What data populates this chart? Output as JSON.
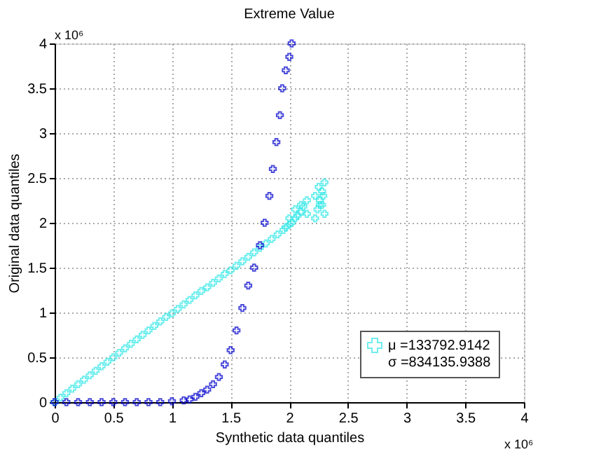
{
  "chart_data": {
    "type": "scatter",
    "title": "Extreme Value",
    "xlabel": "Synthetic data quantiles",
    "ylabel": "Original data quantiles",
    "xlim": [
      0,
      4
    ],
    "ylim": [
      0,
      4
    ],
    "xticks": [
      0,
      0.5,
      1,
      1.5,
      2,
      2.5,
      3,
      3.5,
      4
    ],
    "yticks": [
      0,
      0.5,
      1,
      1.5,
      2,
      2.5,
      3,
      3.5,
      4
    ],
    "grid": true,
    "marker": "cross",
    "legend": "bottom right",
    "annotations": [
      "x 10⁶",
      "x 10⁶"
    ],
    "series": [
      {
        "name": "μ =133792.9142\nσ =834135.9388",
        "color": "#33e8e8",
        "x": [
          0,
          0.05,
          0.1,
          0.15,
          0.2,
          0.25,
          0.3,
          0.35,
          0.4,
          0.45,
          0.5,
          0.55,
          0.6,
          0.65,
          0.7,
          0.75,
          0.8,
          0.85,
          0.9,
          0.95,
          1,
          1.05,
          1.1,
          1.15,
          1.2,
          1.25,
          1.3,
          1.35,
          1.4,
          1.45,
          1.5,
          1.55,
          1.6,
          1.65,
          1.7,
          1.75,
          1.8,
          1.85,
          1.9,
          1.95,
          1.97,
          2.0,
          2.02,
          2.05,
          2.07,
          2.1,
          2.12,
          2.15,
          2.0,
          2.05,
          2.1,
          2.15,
          2.22,
          2.24,
          2.26,
          2.28,
          2.3,
          2.22,
          2.25,
          2.28,
          2.3,
          2.26,
          2.29
        ],
        "values": [
          0,
          0.05,
          0.1,
          0.15,
          0.2,
          0.25,
          0.3,
          0.35,
          0.4,
          0.45,
          0.5,
          0.55,
          0.6,
          0.65,
          0.7,
          0.75,
          0.8,
          0.85,
          0.9,
          0.95,
          0.99,
          1.04,
          1.09,
          1.14,
          1.19,
          1.24,
          1.28,
          1.33,
          1.38,
          1.43,
          1.47,
          1.52,
          1.57,
          1.62,
          1.67,
          1.72,
          1.77,
          1.82,
          1.87,
          1.92,
          1.95,
          1.98,
          2.0,
          2.05,
          2.08,
          2.12,
          2.18,
          2.25,
          2.05,
          2.15,
          2.2,
          2.1,
          2.05,
          2.15,
          2.25,
          2.2,
          2.1,
          2.3,
          2.4,
          2.35,
          2.45,
          2.2,
          2.3
        ]
      },
      {
        "color": "#0000cc",
        "x": [
          0,
          0.1,
          0.2,
          0.3,
          0.4,
          0.5,
          0.6,
          0.7,
          0.8,
          0.9,
          1.0,
          1.1,
          1.15,
          1.2,
          1.25,
          1.3,
          1.35,
          1.4,
          1.45,
          1.5,
          1.55,
          1.6,
          1.65,
          1.7,
          1.75,
          1.79,
          1.83,
          1.86,
          1.89,
          1.92,
          1.94,
          1.97,
          2.0,
          2.02
        ],
        "values": [
          0,
          0,
          0,
          0,
          0,
          0,
          0,
          0,
          0,
          0,
          0.01,
          0.02,
          0.03,
          0.06,
          0.1,
          0.14,
          0.2,
          0.28,
          0.42,
          0.58,
          0.8,
          1.05,
          1.3,
          1.5,
          1.75,
          2.0,
          2.3,
          2.6,
          2.9,
          3.2,
          3.5,
          3.7,
          3.85,
          4.0
        ]
      }
    ]
  }
}
